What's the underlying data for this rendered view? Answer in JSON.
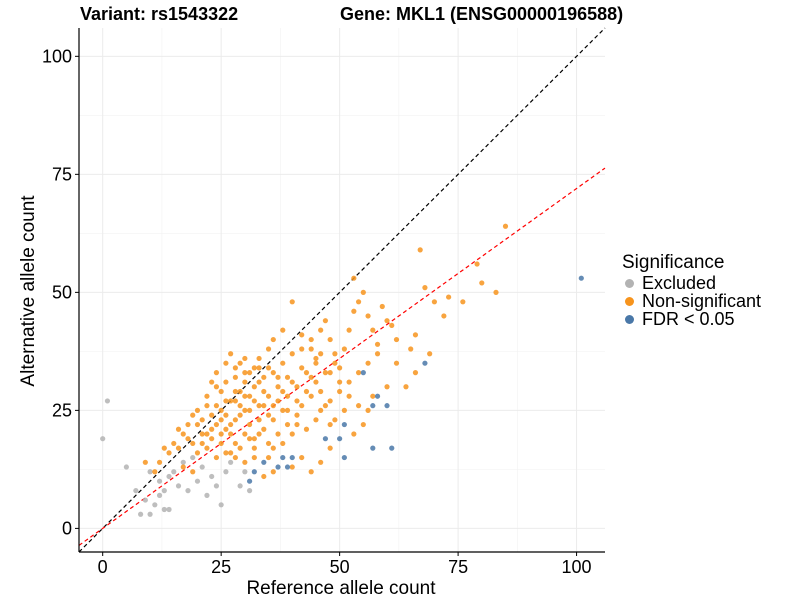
{
  "title_left": "Variant: rs1543322",
  "title_right": "Gene: MKL1 (ENSG00000196588)",
  "chart_data": {
    "type": "scatter",
    "xlabel": "Reference allele count",
    "ylabel": "Alternative allele count",
    "xlim": [
      -5,
      106
    ],
    "ylim": [
      -5,
      106
    ],
    "xticks": [
      0,
      25,
      50,
      75,
      100
    ],
    "yticks": [
      0,
      25,
      50,
      75,
      100
    ],
    "grid": true,
    "reference_lines": [
      {
        "name": "identity",
        "slope": 1.0,
        "intercept": 0,
        "color": "#000000",
        "style": "dashed"
      },
      {
        "name": "expected-ratio",
        "slope": 0.72,
        "intercept": 0,
        "color": "#ff0000",
        "style": "dashed"
      }
    ],
    "legend": {
      "title": "Significance",
      "position": "right",
      "entries": [
        {
          "label": "Excluded",
          "color": "#b3b3b3"
        },
        {
          "label": "Non-significant",
          "color": "#f7941d"
        },
        {
          "label": "FDR < 0.05",
          "color": "#4a78a8"
        }
      ]
    },
    "series": [
      {
        "name": "Excluded",
        "color": "#b3b3b3",
        "points": [
          [
            0,
            19
          ],
          [
            1,
            27
          ],
          [
            5,
            13
          ],
          [
            7,
            8
          ],
          [
            8,
            3
          ],
          [
            9,
            6
          ],
          [
            10,
            3
          ],
          [
            10,
            12
          ],
          [
            11,
            5
          ],
          [
            12,
            10
          ],
          [
            12,
            7
          ],
          [
            13,
            8
          ],
          [
            13,
            4
          ],
          [
            14,
            4
          ],
          [
            14,
            11
          ],
          [
            15,
            12
          ],
          [
            16,
            9
          ],
          [
            17,
            14
          ],
          [
            18,
            8
          ],
          [
            19,
            15
          ],
          [
            20,
            10
          ],
          [
            21,
            13
          ],
          [
            22,
            7
          ],
          [
            23,
            11
          ],
          [
            24,
            9
          ],
          [
            25,
            5
          ],
          [
            26,
            12
          ],
          [
            27,
            14
          ],
          [
            29,
            9
          ],
          [
            30,
            12
          ],
          [
            31,
            8
          ]
        ]
      },
      {
        "name": "FDR < 0.05",
        "color": "#4a78a8",
        "points": [
          [
            31,
            10
          ],
          [
            32,
            12
          ],
          [
            34,
            14
          ],
          [
            37,
            13
          ],
          [
            38,
            15
          ],
          [
            39,
            13
          ],
          [
            40,
            15
          ],
          [
            47,
            19
          ],
          [
            50,
            19
          ],
          [
            51,
            15
          ],
          [
            51,
            22
          ],
          [
            55,
            33
          ],
          [
            57,
            17
          ],
          [
            57,
            26
          ],
          [
            58,
            28
          ],
          [
            60,
            26
          ],
          [
            61,
            17
          ],
          [
            68,
            35
          ],
          [
            101,
            53
          ]
        ]
      },
      {
        "name": "Non-significant",
        "color": "#f7941d",
        "points": [
          [
            9,
            14
          ],
          [
            11,
            12
          ],
          [
            12,
            14
          ],
          [
            13,
            17
          ],
          [
            14,
            16
          ],
          [
            15,
            18
          ],
          [
            16,
            17
          ],
          [
            17,
            13
          ],
          [
            18,
            19
          ],
          [
            16,
            21
          ],
          [
            19,
            24
          ],
          [
            20,
            22
          ],
          [
            21,
            18
          ],
          [
            22,
            26
          ],
          [
            23,
            31
          ],
          [
            24,
            33
          ],
          [
            25,
            29
          ],
          [
            26,
            35
          ],
          [
            27,
            37
          ],
          [
            28,
            32
          ],
          [
            29,
            35
          ],
          [
            30,
            36
          ],
          [
            32,
            34
          ],
          [
            33,
            36
          ],
          [
            35,
            38
          ],
          [
            36,
            40
          ],
          [
            38,
            42
          ],
          [
            40,
            48
          ],
          [
            42,
            41
          ],
          [
            44,
            38
          ],
          [
            45,
            36
          ],
          [
            46,
            42
          ],
          [
            47,
            44
          ],
          [
            48,
            40
          ],
          [
            49,
            37
          ],
          [
            50,
            34
          ],
          [
            51,
            38
          ],
          [
            52,
            42
          ],
          [
            53,
            46
          ],
          [
            54,
            48
          ],
          [
            55,
            50
          ],
          [
            56,
            45
          ],
          [
            57,
            42
          ],
          [
            58,
            39
          ],
          [
            59,
            47
          ],
          [
            60,
            44
          ],
          [
            61,
            43
          ],
          [
            62,
            40
          ],
          [
            65,
            38
          ],
          [
            66,
            41
          ],
          [
            68,
            51
          ],
          [
            70,
            48
          ],
          [
            72,
            45
          ],
          [
            73,
            49
          ],
          [
            76,
            48
          ],
          [
            79,
            56
          ],
          [
            80,
            52
          ],
          [
            83,
            50
          ],
          [
            85,
            64
          ],
          [
            67,
            59
          ],
          [
            53,
            53
          ],
          [
            62,
            35
          ],
          [
            64,
            30
          ],
          [
            66,
            33
          ],
          [
            69,
            37
          ],
          [
            60,
            30
          ],
          [
            57,
            28
          ],
          [
            56,
            25
          ],
          [
            55,
            22
          ],
          [
            53,
            20
          ],
          [
            48,
            17
          ],
          [
            46,
            14
          ],
          [
            44,
            12
          ],
          [
            42,
            15
          ],
          [
            40,
            13
          ],
          [
            36,
            12
          ],
          [
            34,
            11
          ],
          [
            38,
            25
          ],
          [
            41,
            27
          ],
          [
            43,
            29
          ],
          [
            45,
            31
          ],
          [
            47,
            33
          ],
          [
            49,
            35
          ],
          [
            35,
            28
          ],
          [
            37,
            30
          ],
          [
            39,
            32
          ],
          [
            33,
            26
          ],
          [
            31,
            22
          ],
          [
            29,
            24
          ],
          [
            27,
            20
          ],
          [
            25,
            23
          ],
          [
            23,
            21
          ],
          [
            21,
            23
          ],
          [
            20,
            25
          ],
          [
            22,
            28
          ],
          [
            24,
            30
          ],
          [
            26,
            27
          ],
          [
            28,
            29
          ],
          [
            30,
            31
          ],
          [
            32,
            30
          ],
          [
            34,
            32
          ],
          [
            36,
            33
          ],
          [
            38,
            35
          ],
          [
            40,
            37
          ],
          [
            42,
            34
          ],
          [
            44,
            32
          ],
          [
            46,
            29
          ],
          [
            48,
            27
          ],
          [
            50,
            29
          ],
          [
            52,
            31
          ],
          [
            54,
            33
          ],
          [
            56,
            35
          ],
          [
            58,
            37
          ],
          [
            26,
            16
          ],
          [
            28,
            18
          ],
          [
            30,
            20
          ],
          [
            32,
            19
          ],
          [
            34,
            21
          ],
          [
            36,
            23
          ],
          [
            30,
            14
          ],
          [
            32,
            15
          ],
          [
            24,
            15
          ],
          [
            22,
            17
          ],
          [
            19,
            12
          ],
          [
            20,
            16
          ],
          [
            25,
            18
          ],
          [
            27,
            22
          ],
          [
            29,
            26
          ],
          [
            31,
            28
          ],
          [
            33,
            31
          ],
          [
            35,
            24
          ],
          [
            37,
            27
          ],
          [
            39,
            22
          ],
          [
            41,
            24
          ],
          [
            43,
            21
          ],
          [
            45,
            23
          ],
          [
            47,
            26
          ],
          [
            49,
            23
          ],
          [
            51,
            25
          ],
          [
            40,
            20
          ],
          [
            38,
            18
          ],
          [
            36,
            17
          ],
          [
            25,
            25
          ],
          [
            27,
            27
          ],
          [
            29,
            29
          ],
          [
            31,
            33
          ],
          [
            33,
            34
          ],
          [
            26,
            21
          ],
          [
            28,
            23
          ],
          [
            30,
            25
          ],
          [
            32,
            27
          ],
          [
            34,
            26
          ],
          [
            37,
            20
          ],
          [
            39,
            28
          ],
          [
            41,
            30
          ],
          [
            43,
            33
          ],
          [
            45,
            35
          ],
          [
            35,
            18
          ],
          [
            33,
            20
          ],
          [
            23,
            19
          ],
          [
            21,
            20
          ],
          [
            18,
            22
          ],
          [
            17,
            20
          ],
          [
            24,
            26
          ],
          [
            26,
            31
          ],
          [
            28,
            34
          ],
          [
            30,
            33
          ],
          [
            31,
            19
          ],
          [
            29,
            17
          ],
          [
            27,
            16
          ],
          [
            25,
            20
          ],
          [
            23,
            24
          ],
          [
            35,
            34
          ],
          [
            37,
            32
          ],
          [
            42,
            38
          ],
          [
            44,
            40
          ],
          [
            46,
            37
          ],
          [
            48,
            33
          ],
          [
            50,
            31
          ],
          [
            52,
            28
          ],
          [
            54,
            26
          ],
          [
            28,
            27
          ],
          [
            30,
            28
          ],
          [
            33,
            23
          ],
          [
            36,
            26
          ],
          [
            38,
            29
          ],
          [
            40,
            31
          ],
          [
            24,
            22
          ],
          [
            26,
            24
          ],
          [
            31,
            25
          ],
          [
            34,
            29
          ],
          [
            42,
            26
          ],
          [
            44,
            28
          ],
          [
            46,
            25
          ],
          [
            48,
            22
          ],
          [
            39,
            25
          ],
          [
            41,
            22
          ],
          [
            22,
            20
          ],
          [
            19,
            18
          ],
          [
            28,
            15
          ],
          [
            32,
            17
          ],
          [
            35,
            15
          ]
        ]
      }
    ]
  }
}
